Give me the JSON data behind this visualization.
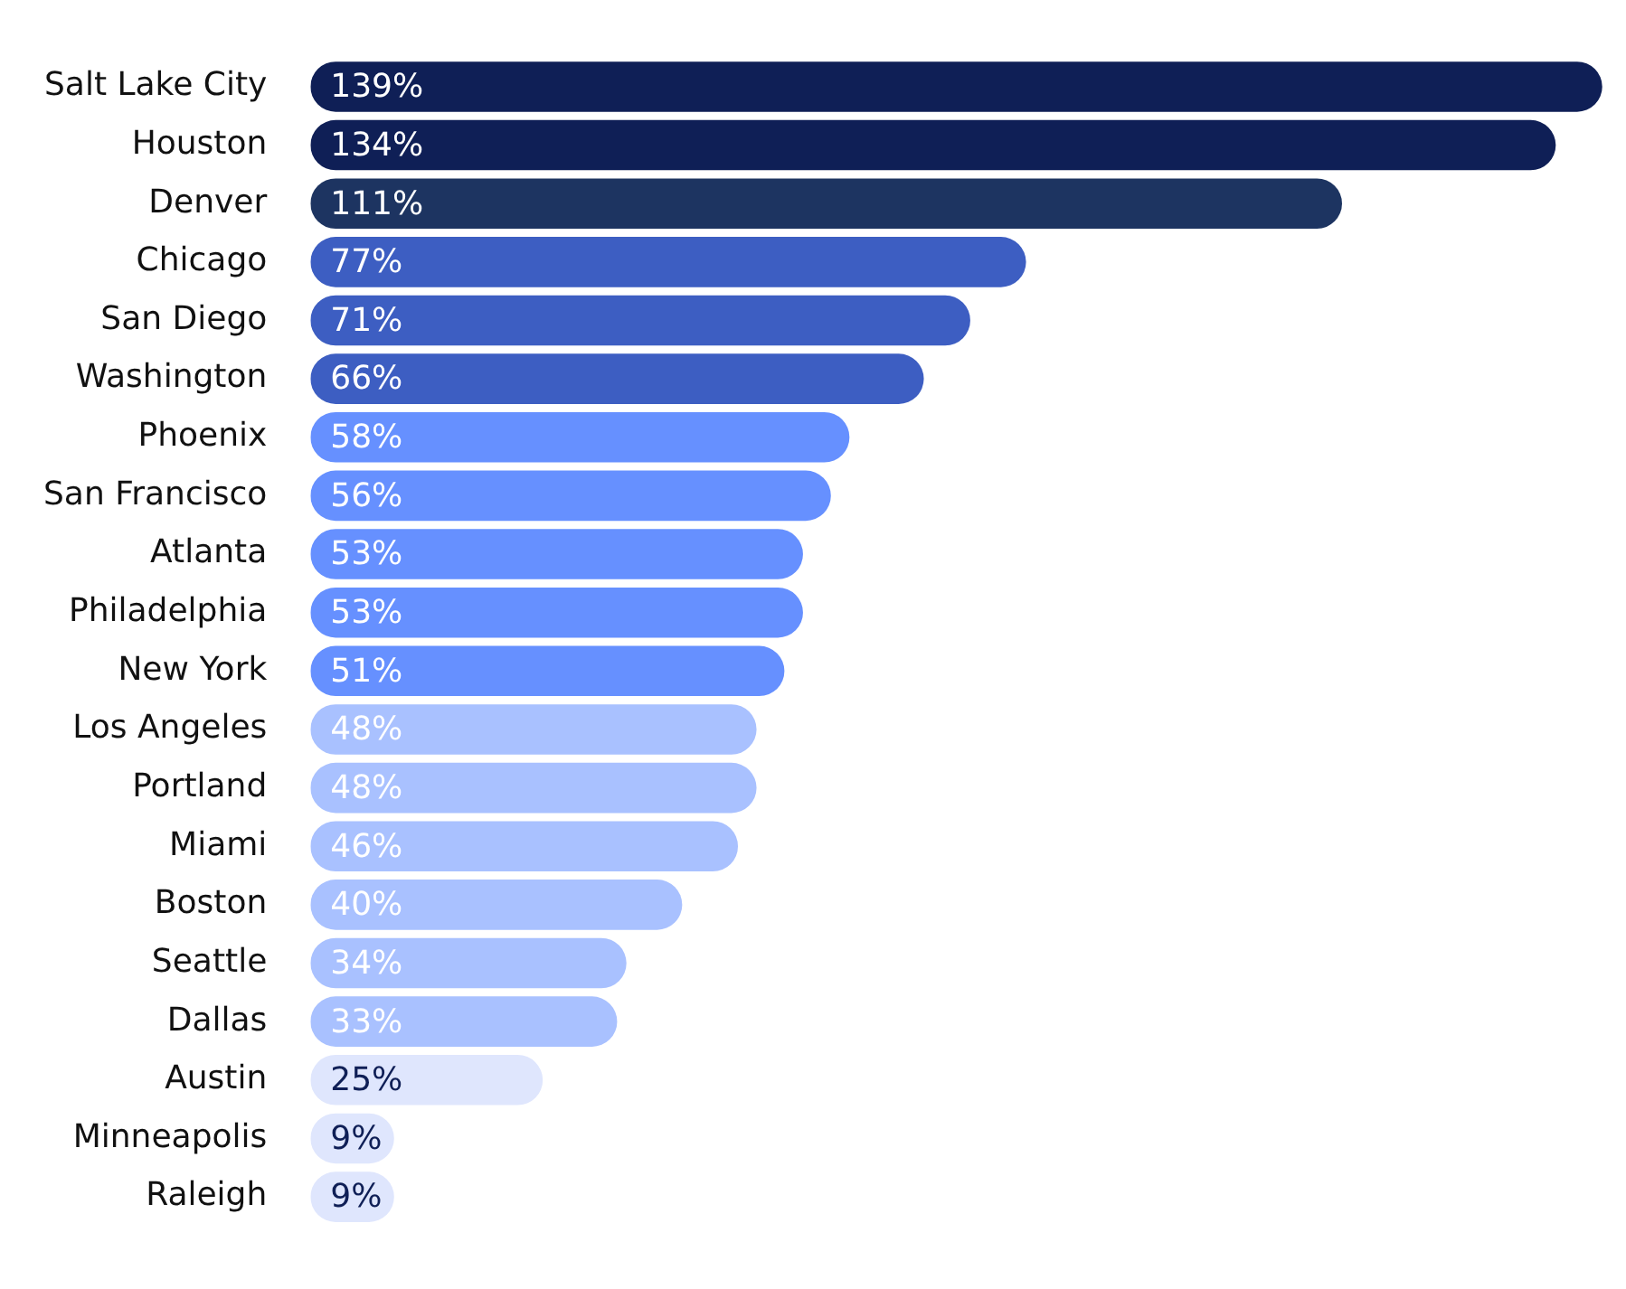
{
  "chart_data": {
    "type": "bar",
    "orientation": "horizontal",
    "categories": [
      "Salt Lake City",
      "Houston",
      "Denver",
      "Chicago",
      "San Diego",
      "Washington",
      "Phoenix",
      "San Francisco",
      "Atlanta",
      "Philadelphia",
      "New York",
      "Los Angeles",
      "Portland",
      "Miami",
      "Boston",
      "Seattle",
      "Dallas",
      "Austin",
      "Minneapolis",
      "Raleigh"
    ],
    "values": [
      139,
      134,
      111,
      77,
      71,
      66,
      58,
      56,
      53,
      53,
      51,
      48,
      48,
      46,
      40,
      34,
      33,
      25,
      9,
      9
    ],
    "value_labels": [
      "139%",
      "134%",
      "111%",
      "77%",
      "71%",
      "66%",
      "58%",
      "56%",
      "53%",
      "53%",
      "51%",
      "48%",
      "48%",
      "46%",
      "40%",
      "34%",
      "33%",
      "25%",
      "9%",
      "9%"
    ],
    "colors": [
      "#0f1f56",
      "#0f1f56",
      "#1d3461",
      "#3d5ec2",
      "#3d5ec2",
      "#3d5ec2",
      "#6690ff",
      "#6690ff",
      "#6690ff",
      "#6690ff",
      "#6690ff",
      "#a9c1ff",
      "#a9c1ff",
      "#a9c1ff",
      "#a9c1ff",
      "#a9c1ff",
      "#a9c1ff",
      "#dfe6fd",
      "#dfe6fd",
      "#dfe6fd"
    ],
    "grid": false,
    "legend": false
  }
}
